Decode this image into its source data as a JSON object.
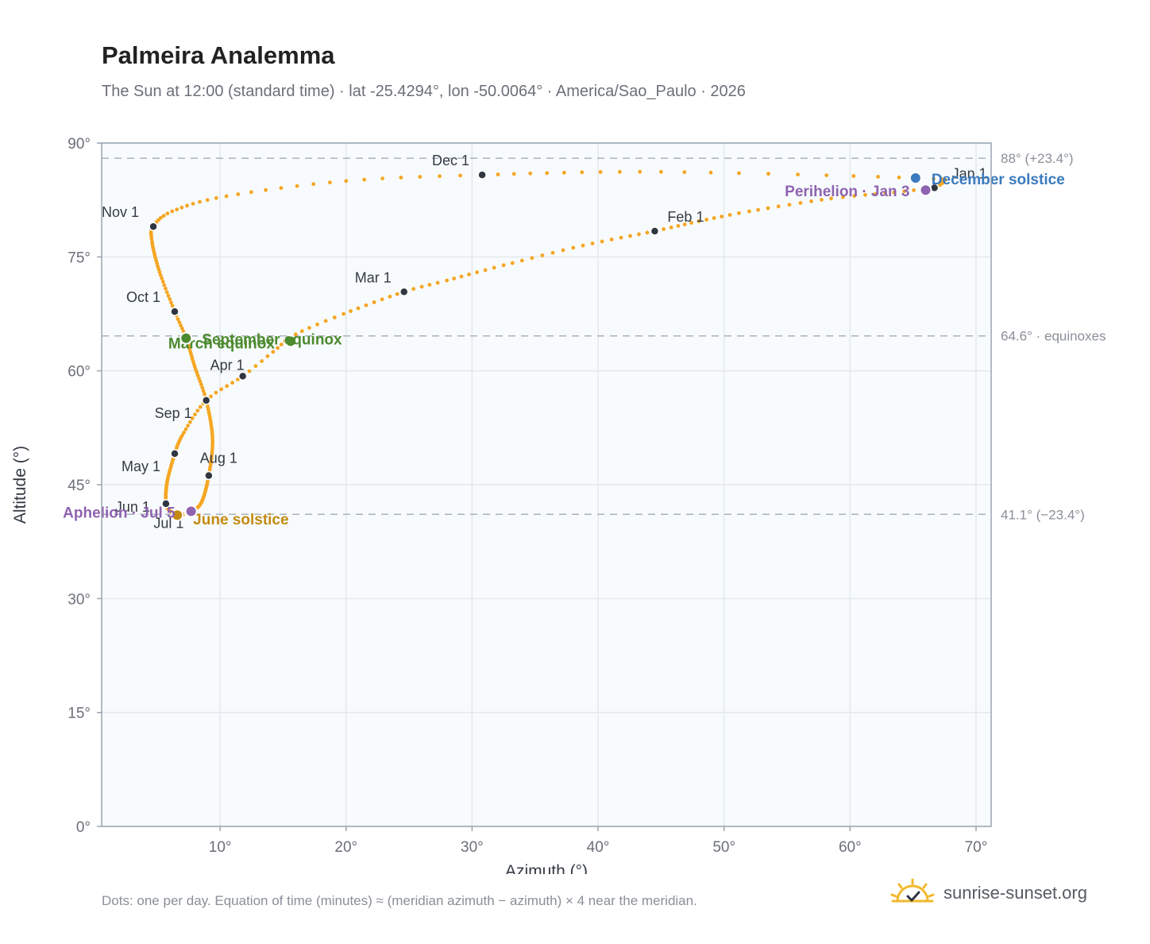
{
  "header": {
    "title": "Palmeira Analemma",
    "subtitle": "The Sun at 12:00 (standard time) · lat -25.4294°, lon -50.0064° · America/Sao_Paulo · 2026"
  },
  "footer": {
    "note": "Dots: one per day. Equation of time (minutes) ≈ (meridian azimuth − azimuth) × 4 near the meridian.",
    "brand": "sunrise-sunset.org",
    "brand_icon": "sun-check-icon"
  },
  "colors": {
    "path": "#f5a623",
    "month_marker": "#2f3640",
    "equinox": "#4c8a2e",
    "june_solstice": "#c48a12",
    "december_solstice": "#3a7bbf",
    "apsis": "#8e63b0",
    "plot_bg": "#f8fbfd",
    "grid": "#e3e8ec",
    "axis": "#9aa4b0",
    "ref_line": "#a8b2bc"
  },
  "chart_data": {
    "type": "scatter",
    "title": "Palmeira Analemma",
    "xlabel": "Azimuth (°)",
    "ylabel": "Altitude (°)",
    "xlim": [
      0.6,
      71.2
    ],
    "ylim": [
      0,
      90
    ],
    "x_ticks": [
      10,
      20,
      30,
      40,
      50,
      60,
      70
    ],
    "x_tick_labels": [
      "10°",
      "20°",
      "30°",
      "40°",
      "50°",
      "60°",
      "70°"
    ],
    "y_ticks": [
      0,
      15,
      30,
      45,
      60,
      75,
      90
    ],
    "y_tick_labels": [
      "0°",
      "15°",
      "30°",
      "45°",
      "60°",
      "75°",
      "90°"
    ],
    "grid": true,
    "reference_lines": [
      {
        "y": 88.0,
        "label": "88° (+23.4°)"
      },
      {
        "y": 64.6,
        "label": "64.6° · equinoxes"
      },
      {
        "y": 41.1,
        "label": "41.1° (−23.4°)"
      }
    ],
    "analemma_path": {
      "points_per_day": 1,
      "control_points": [
        {
          "doy": 1,
          "az": 66.7,
          "alt": 84.1
        },
        {
          "doy": 6,
          "az": 63.5,
          "alt": 83.5
        },
        {
          "doy": 12,
          "az": 58.5,
          "alt": 82.7
        },
        {
          "doy": 20,
          "az": 52.0,
          "alt": 81.0
        },
        {
          "doy": 26,
          "az": 48.0,
          "alt": 79.7
        },
        {
          "doy": 32,
          "az": 44.5,
          "alt": 78.4
        },
        {
          "doy": 40,
          "az": 38.8,
          "alt": 76.5
        },
        {
          "doy": 48,
          "az": 32.5,
          "alt": 73.9
        },
        {
          "doy": 55,
          "az": 28.0,
          "alt": 71.9
        },
        {
          "doy": 60,
          "az": 24.6,
          "alt": 70.4
        },
        {
          "doy": 68,
          "az": 19.8,
          "alt": 67.5
        },
        {
          "doy": 74,
          "az": 16.0,
          "alt": 64.8
        },
        {
          "doy": 79,
          "az": 14.2,
          "alt": 62.5
        },
        {
          "doy": 84,
          "az": 11.8,
          "alt": 59.3
        },
        {
          "doy": 91,
          "az": 8.9,
          "alt": 56.1
        },
        {
          "doy": 101,
          "az": 7.0,
          "alt": 51.5
        },
        {
          "doy": 111,
          "az": 6.4,
          "alt": 49.1
        },
        {
          "doy": 121,
          "az": 6.4,
          "alt": 49.1
        },
        {
          "doy": 136,
          "az": 5.8,
          "alt": 45.4
        },
        {
          "doy": 152,
          "az": 5.7,
          "alt": 42.5
        },
        {
          "doy": 162,
          "az": 6.0,
          "alt": 41.6
        },
        {
          "doy": 172,
          "az": 6.6,
          "alt": 41.0
        },
        {
          "doy": 182,
          "az": 7.5,
          "alt": 41.3
        },
        {
          "doy": 186,
          "az": 7.7,
          "alt": 41.5
        },
        {
          "doy": 196,
          "az": 8.5,
          "alt": 42.6
        },
        {
          "doy": 213,
          "az": 9.1,
          "alt": 46.2
        },
        {
          "doy": 228,
          "az": 9.4,
          "alt": 51.0
        },
        {
          "doy": 244,
          "az": 8.9,
          "alt": 56.1
        },
        {
          "doy": 255,
          "az": 8.0,
          "alt": 60.5
        },
        {
          "doy": 266,
          "az": 7.3,
          "alt": 64.3
        },
        {
          "doy": 274,
          "az": 6.4,
          "alt": 67.8
        },
        {
          "doy": 286,
          "az": 5.2,
          "alt": 73.0
        },
        {
          "doy": 298,
          "az": 4.6,
          "alt": 77.0
        },
        {
          "doy": 305,
          "az": 4.7,
          "alt": 79.0
        },
        {
          "doy": 312,
          "az": 6.2,
          "alt": 81.0
        },
        {
          "doy": 320,
          "az": 10.5,
          "alt": 83.0
        },
        {
          "doy": 328,
          "az": 20.0,
          "alt": 85.0
        },
        {
          "doy": 335,
          "az": 30.8,
          "alt": 85.8
        },
        {
          "doy": 345,
          "az": 45.0,
          "alt": 86.2
        },
        {
          "doy": 355,
          "az": 65.2,
          "alt": 85.4
        },
        {
          "doy": 361,
          "az": 67.3,
          "alt": 84.9
        },
        {
          "doy": 365,
          "az": 66.7,
          "alt": 84.1
        }
      ]
    },
    "month_markers": [
      {
        "label": "Jan 1",
        "az": 66.7,
        "alt": 84.1
      },
      {
        "label": "Feb 1",
        "az": 44.5,
        "alt": 78.4
      },
      {
        "label": "Mar 1",
        "az": 24.6,
        "alt": 70.4
      },
      {
        "label": "Apr 1",
        "az": 11.8,
        "alt": 59.3
      },
      {
        "label": "May 1",
        "az": 6.4,
        "alt": 49.1
      },
      {
        "label": "Jun 1",
        "az": 5.7,
        "alt": 42.5
      },
      {
        "label": "Jul 1",
        "az": 7.5,
        "alt": 41.3
      },
      {
        "label": "Aug 1",
        "az": 9.1,
        "alt": 46.2
      },
      {
        "label": "Sep 1",
        "az": 8.9,
        "alt": 56.1
      },
      {
        "label": "Oct 1",
        "az": 6.4,
        "alt": 67.8
      },
      {
        "label": "Nov 1",
        "az": 4.7,
        "alt": 79.0
      },
      {
        "label": "Dec 1",
        "az": 30.8,
        "alt": 85.8
      }
    ],
    "events": [
      {
        "label": "March equinox",
        "az": 15.6,
        "alt": 63.9,
        "color_key": "equinox"
      },
      {
        "label": "September equinox",
        "az": 7.3,
        "alt": 64.3,
        "color_key": "equinox"
      },
      {
        "label": "June solstice",
        "az": 6.6,
        "alt": 41.0,
        "color_key": "june_solstice"
      },
      {
        "label": "December solstice",
        "az": 65.2,
        "alt": 85.4,
        "color_key": "december_solstice"
      },
      {
        "label": "Perihelion · Jan 3",
        "az": 66.0,
        "alt": 83.8,
        "color_key": "apsis"
      },
      {
        "label": "Aphelion · Jul 5",
        "az": 7.7,
        "alt": 41.5,
        "color_key": "apsis"
      }
    ]
  }
}
